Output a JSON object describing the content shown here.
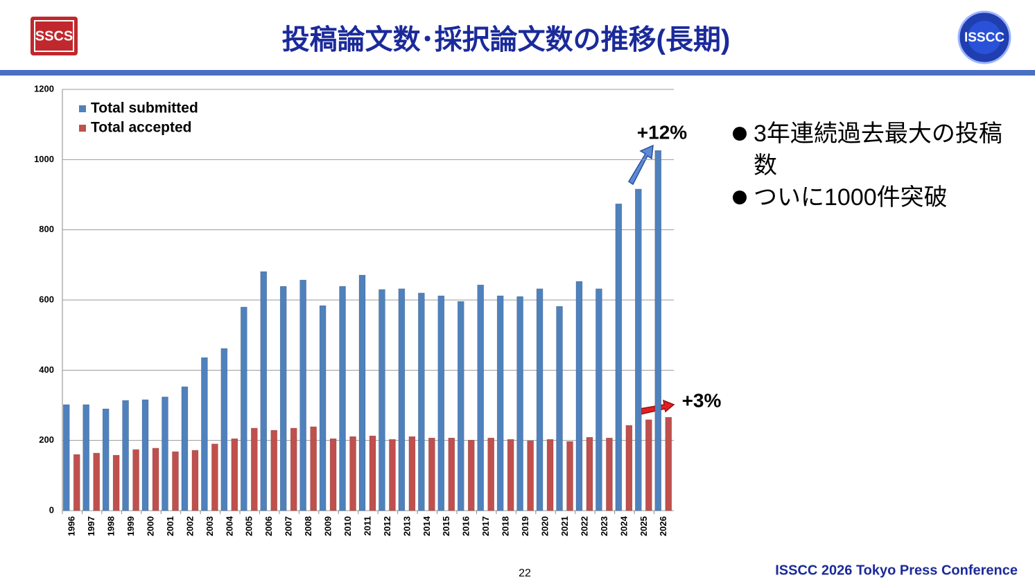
{
  "slide": {
    "title": "投稿論文数･採択論文数の推移(長期)",
    "logo_left": "SSCS",
    "logo_right": "ISSCC",
    "bullets": [
      "3年連続過去最大の投稿数",
      "ついに1000件突破"
    ],
    "page_number": "22",
    "footer": "ISSCC 2026 Tokyo Press Conference"
  },
  "chart_data": {
    "type": "bar",
    "categories": [
      "1996",
      "1997",
      "1998",
      "1999",
      "2000",
      "2001",
      "2002",
      "2003",
      "2004",
      "2005",
      "2006",
      "2007",
      "2008",
      "2009",
      "2010",
      "2011",
      "2012",
      "2013",
      "2014",
      "2015",
      "2016",
      "2017",
      "2018",
      "2019",
      "2020",
      "2021",
      "2022",
      "2023",
      "2024",
      "2025",
      "2026"
    ],
    "series": [
      {
        "name": "Total submitted",
        "color": "#4f81bd",
        "values": [
          302,
          302,
          290,
          314,
          316,
          324,
          353,
          436,
          462,
          580,
          681,
          639,
          657,
          584,
          639,
          671,
          630,
          632,
          620,
          612,
          596,
          643,
          612,
          610,
          632,
          582,
          653,
          632,
          874,
          916,
          1026
        ]
      },
      {
        "name": "Total accepted",
        "color": "#c0504d",
        "values": [
          160,
          164,
          158,
          174,
          178,
          168,
          172,
          190,
          205,
          235,
          229,
          235,
          239,
          205,
          211,
          213,
          203,
          211,
          207,
          207,
          201,
          207,
          203,
          199,
          203,
          197,
          209,
          207,
          243,
          259,
          266
        ]
      }
    ],
    "ylim": [
      0,
      1200
    ],
    "yticks": [
      0,
      200,
      400,
      600,
      800,
      1000,
      1200
    ],
    "grid": true,
    "legend": "upper left",
    "annotations": [
      "+12%",
      "+3%"
    ]
  }
}
